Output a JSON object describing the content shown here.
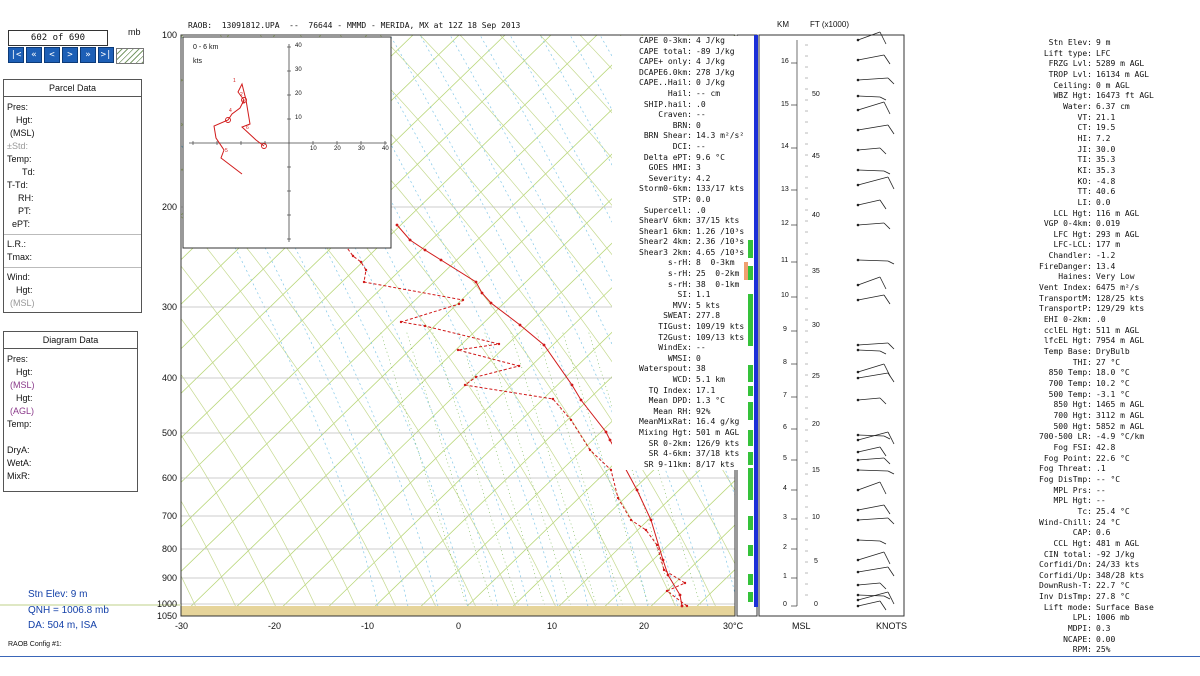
{
  "nav": {
    "counter": "602 of 690",
    "unit": "mb",
    "buttons": [
      "|<",
      "«",
      "<",
      ">",
      "»",
      ">|"
    ]
  },
  "parcel_panel": {
    "title": "Parcel Data",
    "labels": [
      "Pres:",
      "Hgt:",
      "(MSL)",
      "±Std:",
      "Temp:",
      "Td:",
      "T-Td:",
      "RH:",
      "PT:",
      "ePT:",
      "L.R.:",
      "Tmax:",
      "Wind:",
      "Hgt:",
      "(MSL)"
    ]
  },
  "diagram_panel": {
    "title": "Diagram Data",
    "labels": [
      "Pres:",
      "Hgt:",
      "(MSL)",
      "Hgt:",
      "(AGL)",
      "Temp:",
      "DryA:",
      "WetA:",
      "MixR:"
    ]
  },
  "station": {
    "stn_elev": "Stn Elev: 9 m",
    "qnh": "QNH = 1006.8 mb",
    "da": "DA: 504 m, ISA",
    "config": "RAOB Config #1:"
  },
  "header": {
    "title": "RAOB:  13091812.UPA  --  76644 - MMMD - MERIDA, MX at 12Z 18 Sep 2013",
    "km": "KM",
    "ft": "FT (x1000)"
  },
  "hodograph": {
    "title": "0 - 6 km",
    "unit": "kts",
    "y_ticks": [
      "40",
      "30",
      "20",
      "10"
    ],
    "x_ticks": [
      "10",
      "20",
      "30",
      "40"
    ],
    "points": [
      "1",
      "2",
      "3",
      "4",
      "5",
      "6"
    ]
  },
  "axes": {
    "pressure": [
      "100",
      "200",
      "300",
      "400",
      "500",
      "600",
      "700",
      "800",
      "900",
      "1000",
      "1050"
    ],
    "temp": [
      "-30",
      "-20",
      "-10",
      "0",
      "10",
      "20",
      "30°C"
    ],
    "km_ticks": [
      "16",
      "15",
      "14",
      "13",
      "12",
      "11",
      "10",
      "9",
      "8",
      "7",
      "6",
      "5",
      "4",
      "3",
      "2",
      "1",
      "0"
    ],
    "ft_ticks": [
      "50",
      "45",
      "40",
      "35",
      "30",
      "25",
      "20",
      "15",
      "10",
      "5",
      "0"
    ],
    "msl": "MSL",
    "knots": "KNOTS"
  },
  "indices_mid": [
    [
      "CAPE 0-3km:",
      "4 J/kg"
    ],
    [
      "CAPE total:",
      "-89 J/kg"
    ],
    [
      "CAPE+ only:",
      "4 J/kg"
    ],
    [
      "DCAPE6.0km:",
      "278 J/kg"
    ],
    [
      "CAPE..Hail:",
      "0 J/kg"
    ],
    [
      "Hail:",
      "-- cm"
    ],
    [
      "SHIP.hail:",
      ".0"
    ],
    [
      "Craven:",
      "--"
    ],
    [
      "BRN:",
      "0"
    ],
    [
      "BRN Shear:",
      "14.3 m²/s²"
    ],
    [
      "DCI:",
      "--"
    ],
    [
      "Delta ePT:",
      "9.6 °C"
    ],
    [
      "GOES HMI:",
      "3"
    ],
    [
      "Severity:",
      "4.2"
    ],
    [
      "Storm0-6km:",
      "133/17 kts"
    ],
    [
      "STP:",
      "0.0"
    ],
    [
      "Supercell:",
      ".0"
    ],
    [
      "ShearV 6km:",
      "37/15 kts"
    ],
    [
      "Shear1 6km:",
      "1.26 /10³s"
    ],
    [
      "Shear2 4km:",
      "2.36 /10³s"
    ],
    [
      "Shear3 2km:",
      "4.65 /10³s"
    ],
    [
      "s-rH:",
      "8  0-3km"
    ],
    [
      "s-rH:",
      "25  0-2km"
    ],
    [
      "s-rH:",
      "38  0-1km"
    ],
    [
      "SI:",
      "1.1"
    ],
    [
      "MVV:",
      "5 kts"
    ],
    [
      "SWEAT:",
      "277.8"
    ],
    [
      "TIGust:",
      "109/19 kts"
    ],
    [
      "T2Gust:",
      "109/13 kts"
    ],
    [
      "WindEx:",
      "--"
    ],
    [
      "WMSI:",
      "0"
    ],
    [
      "Waterspout:",
      "38"
    ],
    [
      "WCD:",
      "5.1 km"
    ],
    [
      "TQ Index:",
      "17.1"
    ],
    [
      "Mean DPD:",
      "1.3 °C"
    ],
    [
      "Mean RH:",
      "92%"
    ],
    [
      "MeanMixRat:",
      "16.4 g/kg"
    ],
    [
      "Mixing Hgt:",
      "501 m AGL"
    ],
    [
      "SR 0-2km:",
      "126/9 kts"
    ],
    [
      "SR 4-6km:",
      "37/18 kts"
    ],
    [
      "SR 9-11km:",
      "8/17 kts"
    ]
  ],
  "indices_right": [
    [
      "Stn Elev:",
      "9 m"
    ],
    [
      "Lift type:",
      "LFC"
    ],
    [
      "FRZG Lvl:",
      "5289 m AGL"
    ],
    [
      "TROP Lvl:",
      "16134 m AGL"
    ],
    [
      "Ceiling:",
      "0 m AGL"
    ],
    [
      "WBZ Hgt:",
      "16473 ft AGL"
    ],
    [
      "Water:",
      "6.37 cm"
    ],
    [
      "VT:",
      "21.1"
    ],
    [
      "CT:",
      "19.5"
    ],
    [
      "HI:",
      "7.2"
    ],
    [
      "JI:",
      "30.0"
    ],
    [
      "TI:",
      "35.3"
    ],
    [
      "KI:",
      "35.3"
    ],
    [
      "KO:",
      "-4.8"
    ],
    [
      "TT:",
      "40.6"
    ],
    [
      "LI:",
      "0.0"
    ],
    [
      "LCL Hgt:",
      "116 m AGL"
    ],
    [
      "VGP 0-4km:",
      "0.019"
    ],
    [
      "LFC Hgt:",
      "293 m AGL"
    ],
    [
      "LFC-LCL:",
      "177 m"
    ],
    [
      "Chandler:",
      "-1.2"
    ],
    [
      "FireDanger:",
      "13.4"
    ],
    [
      "Haines:",
      "Very Low"
    ],
    [
      "Vent Index:",
      "6475 m²/s"
    ],
    [
      "TransportM:",
      "128/25 kts"
    ],
    [
      "TransportP:",
      "129/29 kts"
    ],
    [
      "EHI 0-2km:",
      ".0"
    ],
    [
      "cclEL Hgt:",
      "511 m AGL"
    ],
    [
      "lfcEL Hgt:",
      "7954 m AGL"
    ],
    [
      "Temp Base:",
      "DryBulb"
    ],
    [
      "THI:",
      "27 °C"
    ],
    [
      "850 Temp:",
      "18.0 °C"
    ],
    [
      "700 Temp:",
      "10.2 °C"
    ],
    [
      "500 Temp:",
      "-3.1 °C"
    ],
    [
      "850 Hgt:",
      "1465 m AGL"
    ],
    [
      "700 Hgt:",
      "3112 m AGL"
    ],
    [
      "500 Hgt:",
      "5852 m AGL"
    ],
    [
      "700-500 LR:",
      "-4.9 °C/km"
    ],
    [
      "Fog FSI:",
      "42.8"
    ],
    [
      "Fog Point:",
      "22.6 °C"
    ],
    [
      "Fog Threat:",
      ".1"
    ],
    [
      "Fog DisTmp:",
      "-- °C"
    ],
    [
      "MPL Prs:",
      "--"
    ],
    [
      "MPL Hgt:",
      "--"
    ],
    [
      "Tc:",
      "25.4 °C"
    ],
    [
      "Wind-Chill:",
      "24 °C"
    ],
    [
      "CAP:",
      "0.6"
    ],
    [
      "CCL Hgt:",
      "481 m AGL"
    ],
    [
      "CIN total:",
      "-92 J/kg"
    ],
    [
      "Corfidi/Dn:",
      "24/33 kts"
    ],
    [
      "Corfidi/Up:",
      "348/28 kts"
    ],
    [
      "DownRush-T:",
      "22.7 °C"
    ],
    [
      "Inv DisTmp:",
      "27.8 °C"
    ],
    [
      "Lift mode:",
      "Surface Base"
    ],
    [
      "LPL:",
      "1006 mb"
    ],
    [
      "MDPI:",
      "0.3"
    ],
    [
      "NCAPE:",
      "0.00"
    ],
    [
      "RPM:",
      "25%"
    ]
  ],
  "colors": {
    "temp_line": "#d11a1a",
    "isotherm": "#b9d77a",
    "dry_adiabat": "#c5d98f",
    "moist_adiabat": "#7fc6e8",
    "bar_green": "#35c23a",
    "bar_blue": "#1b2fd8",
    "bar_orange": "#f0a070",
    "ground": "#e6d49a"
  }
}
